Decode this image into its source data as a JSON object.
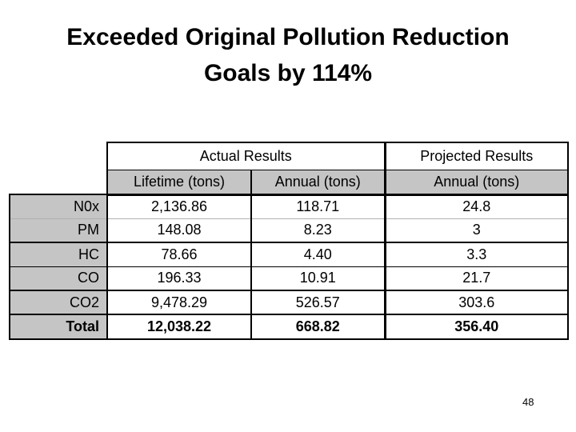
{
  "slide": {
    "title_line1": "Exceeded Original Pollution Reduction",
    "title_line2": "Goals by 114%",
    "page_number": "48"
  },
  "table": {
    "group_headers": [
      "Actual Results",
      "Projected Results"
    ],
    "col_headers": [
      "Lifetime (tons)",
      "Annual (tons)",
      "Annual (tons)"
    ],
    "rows": [
      {
        "label": "N0x",
        "values": [
          "2,136.86",
          "118.71",
          "24.8"
        ]
      },
      {
        "label": "PM",
        "values": [
          "148.08",
          "8.23",
          "3"
        ]
      },
      {
        "label": "HC",
        "values": [
          "78.66",
          "4.40",
          "3.3"
        ]
      },
      {
        "label": "CO",
        "values": [
          "196.33",
          "10.91",
          "21.7"
        ]
      },
      {
        "label": "CO2",
        "values": [
          "9,478.29",
          "526.57",
          "303.6"
        ]
      },
      {
        "label": "Total",
        "values": [
          "12,038.22",
          "668.82",
          "356.40"
        ]
      }
    ],
    "colors": {
      "header_fill": "#c5c5c5",
      "border": "#000000",
      "light_divider": "#b0b0b0",
      "background": "#ffffff",
      "text": "#000000"
    }
  }
}
